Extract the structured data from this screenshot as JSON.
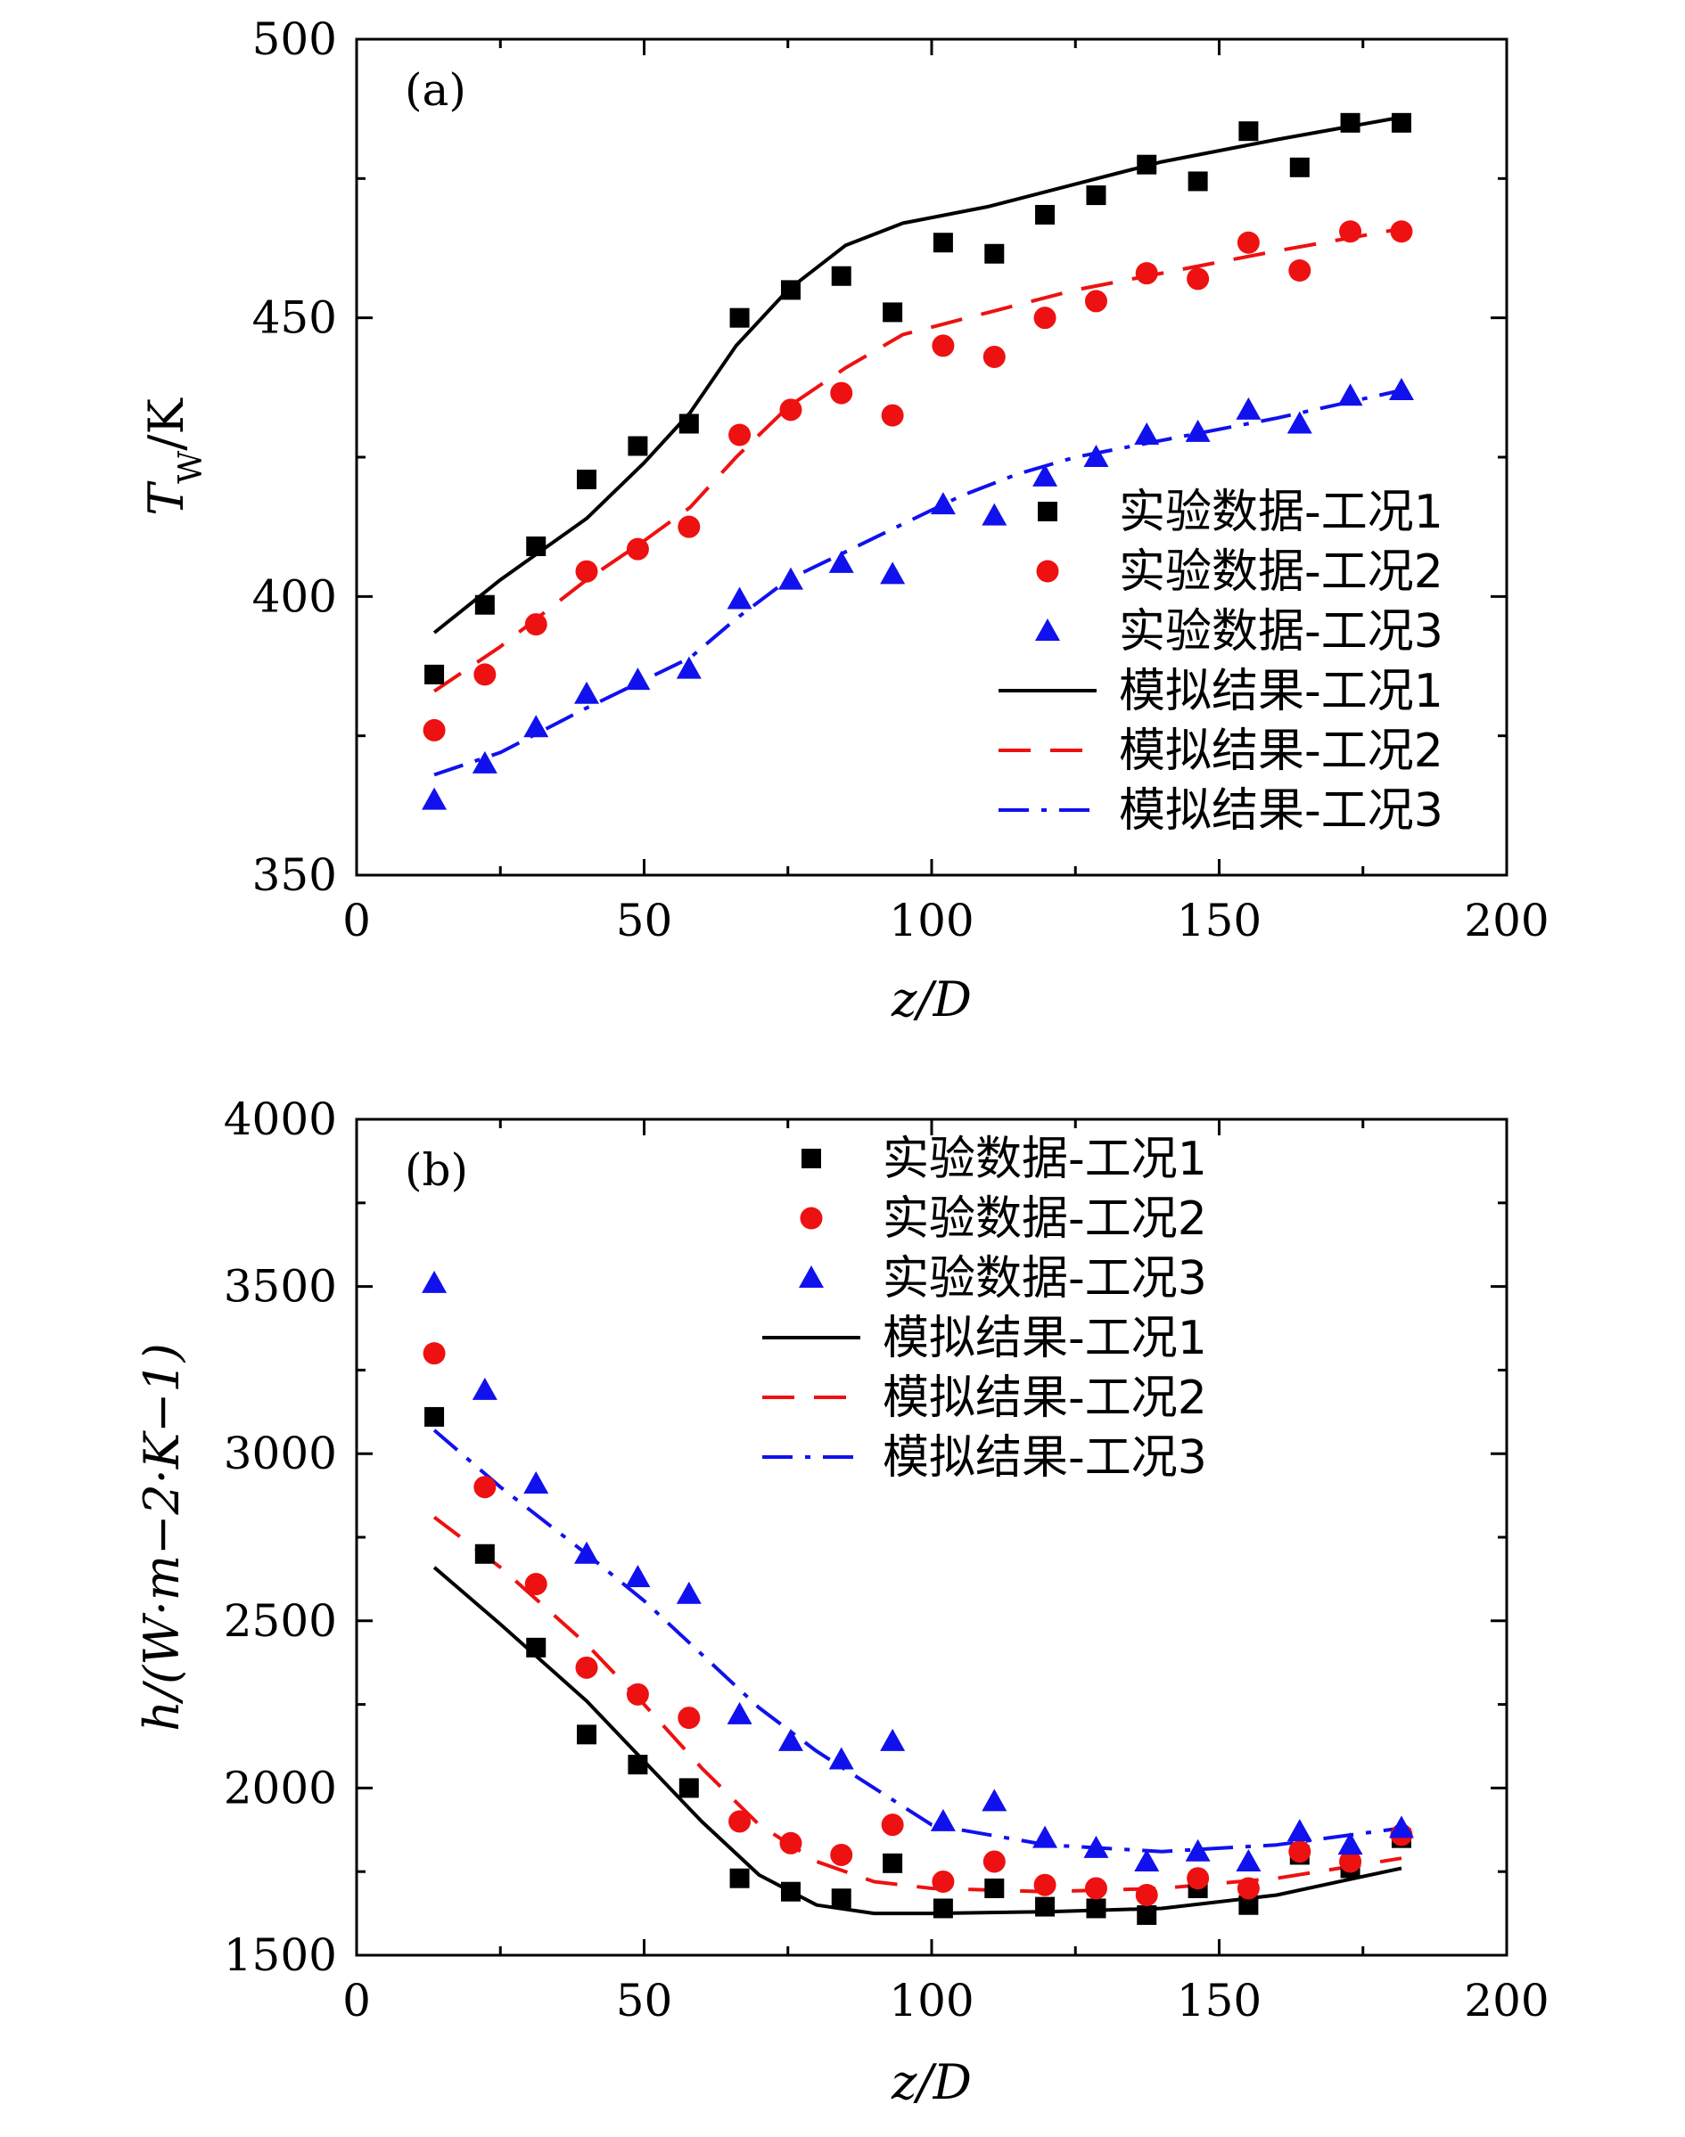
{
  "chart_data": [
    {
      "type": "line",
      "panel_label": "(a)",
      "xlabel": "z/D",
      "ylabel": "T_W/K",
      "ylabel_parts": [
        "T",
        "W",
        "/K"
      ],
      "xlim": [
        0,
        200
      ],
      "ylim": [
        350,
        500
      ],
      "xticks": [
        0,
        50,
        100,
        150,
        200
      ],
      "yticks": [
        350,
        400,
        450,
        500
      ],
      "legend_position": "lower-right",
      "series": [
        {
          "name": "实验数据-工况1",
          "kind": "scatter",
          "marker": "square",
          "color": "#000000",
          "x": [
            13.5,
            22.3,
            31.2,
            40,
            48.9,
            57.8,
            66.6,
            75.5,
            84.3,
            93.2,
            102,
            110.9,
            119.7,
            128.6,
            137.4,
            146.3,
            155.1,
            164,
            172.8,
            181.7
          ],
          "y": [
            386,
            398.5,
            409,
            421,
            427,
            431,
            450,
            455,
            457.5,
            451,
            463.5,
            461.5,
            468.5,
            472,
            477.5,
            474.5,
            483.5,
            477,
            485,
            485
          ]
        },
        {
          "name": "实验数据-工况2",
          "kind": "scatter",
          "marker": "circle",
          "color": "#ee1111",
          "x": [
            13.5,
            22.3,
            31.2,
            40,
            48.9,
            57.8,
            66.6,
            75.5,
            84.3,
            93.2,
            102,
            110.9,
            119.7,
            128.6,
            137.4,
            146.3,
            155.1,
            164,
            172.8,
            181.7
          ],
          "y": [
            376,
            386,
            395,
            404.5,
            408.5,
            412.5,
            429,
            433.5,
            436.5,
            432.5,
            445,
            443,
            450,
            453,
            458,
            457,
            463.5,
            458.5,
            465.5,
            465.5
          ]
        },
        {
          "name": "实验数据-工况3",
          "kind": "scatter",
          "marker": "triangle",
          "color": "#1111ee",
          "x": [
            13.5,
            22.3,
            31.2,
            40,
            48.9,
            57.8,
            66.6,
            75.5,
            84.3,
            93.2,
            102,
            110.9,
            119.7,
            128.6,
            137.4,
            146.3,
            155.1,
            164,
            172.8,
            181.7
          ],
          "y": [
            363.5,
            370,
            376.5,
            382.5,
            385,
            387,
            399.5,
            403,
            406,
            404,
            416.5,
            414.5,
            421.5,
            425,
            429,
            429.5,
            433.5,
            431,
            436,
            437
          ]
        },
        {
          "name": "模拟结果-工况1",
          "kind": "line",
          "dash": "solid",
          "color": "#000000",
          "x": [
            13.5,
            25,
            40,
            50,
            58,
            66,
            75,
            85,
            95,
            110,
            125,
            140,
            160,
            181.7
          ],
          "y": [
            393.5,
            403,
            414,
            424,
            433,
            445,
            455,
            463,
            467,
            470,
            474,
            478,
            482,
            486
          ]
        },
        {
          "name": "模拟结果-工况2",
          "kind": "line",
          "dash": "dashed",
          "color": "#ee1111",
          "x": [
            13.5,
            25,
            40,
            50,
            58,
            66,
            75,
            85,
            95,
            110,
            125,
            140,
            160,
            181.7
          ],
          "y": [
            383,
            391,
            403,
            410,
            416,
            425,
            434,
            441,
            447,
            451,
            455,
            458,
            462,
            466
          ]
        },
        {
          "name": "模拟结果-工况3",
          "kind": "line",
          "dash": "dashdot",
          "color": "#1111ee",
          "x": [
            13.5,
            25,
            40,
            50,
            58,
            66,
            75,
            85,
            95,
            105,
            115,
            125,
            140,
            160,
            181.7
          ],
          "y": [
            368,
            372,
            380,
            385,
            389,
            396,
            403,
            408,
            413,
            418,
            422,
            425,
            428,
            432,
            437
          ]
        }
      ]
    },
    {
      "type": "line",
      "panel_label": "(b)",
      "xlabel": "z/D",
      "ylabel": "h/(W·m−2·K−1)",
      "xlim": [
        0,
        200
      ],
      "ylim": [
        1500,
        4000
      ],
      "xticks": [
        0,
        50,
        100,
        150,
        200
      ],
      "yticks": [
        1500,
        2000,
        2500,
        3000,
        3500,
        4000
      ],
      "legend_position": "top-center",
      "series": [
        {
          "name": "实验数据-工况1",
          "kind": "scatter",
          "marker": "square",
          "color": "#000000",
          "x": [
            13.5,
            22.3,
            31.2,
            40,
            48.9,
            57.8,
            66.6,
            75.5,
            84.3,
            93.2,
            102,
            110.9,
            119.7,
            128.6,
            137.4,
            146.3,
            155.1,
            164,
            172.8,
            181.7
          ],
          "y": [
            3110,
            2700,
            2420,
            2160,
            2070,
            2000,
            1730,
            1690,
            1670,
            1775,
            1640,
            1700,
            1645,
            1640,
            1620,
            1700,
            1650,
            1800,
            1760,
            1850
          ]
        },
        {
          "name": "实验数据-工况2",
          "kind": "scatter",
          "marker": "circle",
          "color": "#ee1111",
          "x": [
            13.5,
            22.3,
            31.2,
            40,
            48.9,
            57.8,
            66.6,
            75.5,
            84.3,
            93.2,
            102,
            110.9,
            119.7,
            128.6,
            137.4,
            146.3,
            155.1,
            164,
            172.8,
            181.7
          ],
          "y": [
            3300,
            2900,
            2610,
            2360,
            2280,
            2210,
            1900,
            1835,
            1800,
            1890,
            1720,
            1780,
            1710,
            1700,
            1680,
            1730,
            1700,
            1810,
            1780,
            1860
          ]
        },
        {
          "name": "实验数据-工况3",
          "kind": "scatter",
          "marker": "triangle",
          "color": "#1111ee",
          "x": [
            13.5,
            22.3,
            31.2,
            40,
            48.9,
            57.8,
            66.6,
            75.5,
            84.3,
            93.2,
            102,
            110.9,
            119.7,
            128.6,
            137.4,
            146.3,
            155.1,
            164,
            172.8,
            181.7
          ],
          "y": [
            3510,
            3190,
            2910,
            2700,
            2630,
            2580,
            2220,
            2140,
            2085,
            2140,
            1900,
            1960,
            1850,
            1820,
            1780,
            1810,
            1780,
            1870,
            1830,
            1880
          ]
        },
        {
          "name": "模拟结果-工况1",
          "kind": "line",
          "dash": "solid",
          "color": "#000000",
          "x": [
            13.5,
            25,
            40,
            50,
            60,
            70,
            80,
            90,
            100,
            120,
            140,
            160,
            181.7
          ],
          "y": [
            2660,
            2490,
            2260,
            2080,
            1900,
            1740,
            1650,
            1625,
            1625,
            1630,
            1640,
            1680,
            1760
          ]
        },
        {
          "name": "模拟结果-工况2",
          "kind": "line",
          "dash": "dashed",
          "color": "#ee1111",
          "x": [
            13.5,
            25,
            40,
            50,
            60,
            70,
            80,
            90,
            100,
            120,
            140,
            160,
            181.7
          ],
          "y": [
            2810,
            2660,
            2430,
            2250,
            2060,
            1890,
            1780,
            1720,
            1700,
            1690,
            1700,
            1730,
            1790
          ]
        },
        {
          "name": "模拟结果-工况3",
          "kind": "line",
          "dash": "dashdot",
          "color": "#1111ee",
          "x": [
            13.5,
            25,
            40,
            50,
            60,
            70,
            80,
            90,
            100,
            120,
            140,
            160,
            181.7
          ],
          "y": [
            3070,
            2900,
            2700,
            2560,
            2400,
            2240,
            2110,
            2000,
            1890,
            1830,
            1810,
            1830,
            1880
          ]
        }
      ]
    }
  ]
}
